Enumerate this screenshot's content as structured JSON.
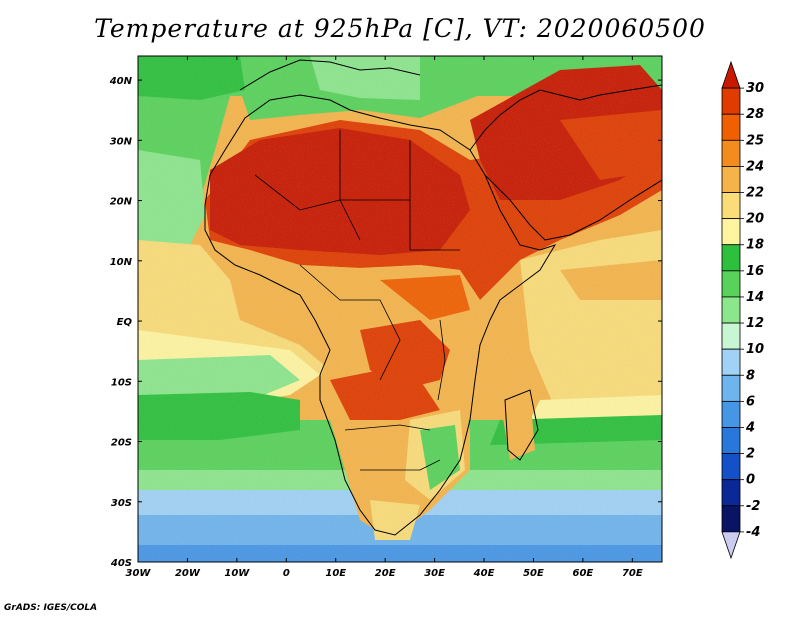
{
  "title": "Temperature at 925hPa [C], VT: 2020060500",
  "footer": "GrADS: IGES/COLA",
  "map": {
    "lon_range": [
      -30,
      76
    ],
    "lat_range": [
      -40,
      44
    ],
    "lon_ticks": [
      {
        "value": -30,
        "label": "30W"
      },
      {
        "value": -20,
        "label": "20W"
      },
      {
        "value": -10,
        "label": "10W"
      },
      {
        "value": 0,
        "label": "0"
      },
      {
        "value": 10,
        "label": "10E"
      },
      {
        "value": 20,
        "label": "20E"
      },
      {
        "value": 30,
        "label": "30E"
      },
      {
        "value": 40,
        "label": "40E"
      },
      {
        "value": 50,
        "label": "50E"
      },
      {
        "value": 60,
        "label": "60E"
      },
      {
        "value": 70,
        "label": "70E"
      }
    ],
    "lat_ticks": [
      {
        "value": 40,
        "label": "40N"
      },
      {
        "value": 30,
        "label": "30N"
      },
      {
        "value": 20,
        "label": "20N"
      },
      {
        "value": 10,
        "label": "10N"
      },
      {
        "value": 0,
        "label": "EQ"
      },
      {
        "value": -10,
        "label": "10S"
      },
      {
        "value": -20,
        "label": "20S"
      },
      {
        "value": -30,
        "label": "30S"
      },
      {
        "value": -40,
        "label": "40S"
      }
    ]
  },
  "colorbar": {
    "levels": [
      "30",
      "28",
      "25",
      "24",
      "22",
      "20",
      "18",
      "16",
      "14",
      "12",
      "10",
      "8",
      "6",
      "4",
      "2",
      "0",
      "-2",
      "-4"
    ],
    "colors": [
      "#c81800",
      "#e03c00",
      "#f06000",
      "#f28c1e",
      "#f5b44a",
      "#fadc78",
      "#fff5a0",
      "#2cc03c",
      "#58d25a",
      "#8ce68c",
      "#c8f5d2",
      "#a0d2f5",
      "#6eb4ed",
      "#4696e6",
      "#2878dc",
      "#1450c8",
      "#0a2896",
      "#0a1464",
      "#ccccf0"
    ]
  }
}
